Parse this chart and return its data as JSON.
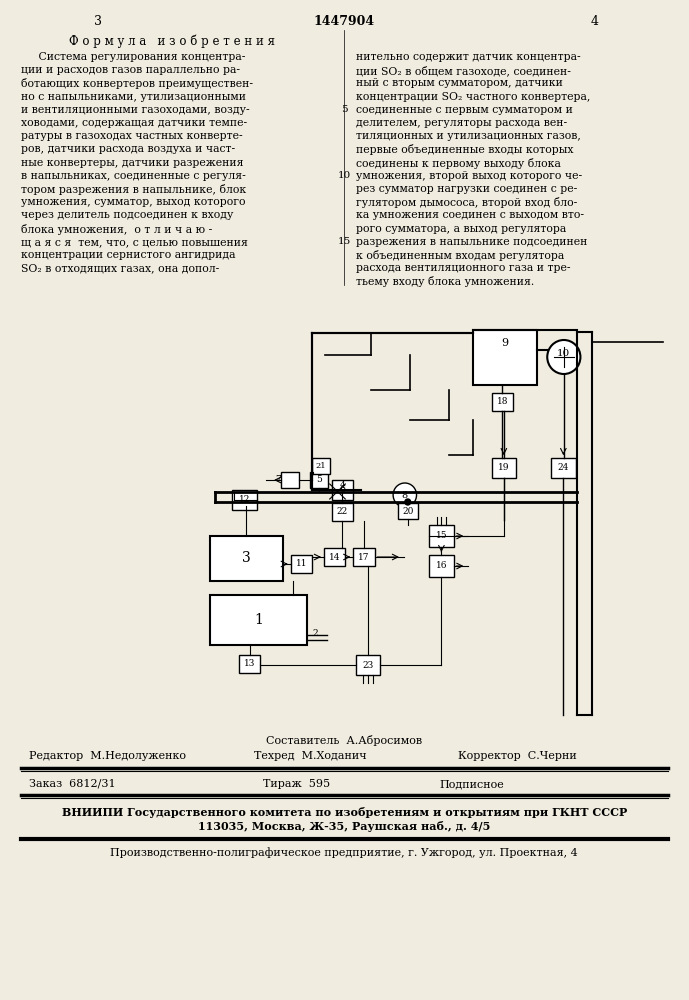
{
  "bg_color": "#f0ece0",
  "page_width": 7.07,
  "page_height": 10.0,
  "patent_number": "1447904",
  "page_left": "3",
  "page_right": "4",
  "header_formula_title": "Ф о р м у л а   и з о б р е т е н и я",
  "left_col_lines": [
    "     Система регулирования концентра-",
    "ции и расходов газов параллельно ра-",
    "ботающих конвертеров преимуществен-",
    "но с напыльниками, утилизационными",
    "и вентиляционными газоходами, возду-",
    "ховодами, содержащая датчики темпе-",
    "ратуры в газоходах частных конверте-",
    "ров, датчики расхода воздуха и част-",
    "ные конвертеры, датчики разрежения",
    "в напыльниках, соединенные с регуля-",
    "тором разрежения в напыльнике, блок",
    "умножения, сумматор, выход которого",
    "через делитель подсоединен к входу",
    "блока умножения,  о т л и ч а ю -",
    "щ а я с я  тем, что, с целью повышения",
    "концентрации сернистого ангидрида",
    "SO₂ в отходящих газах, она допол-"
  ],
  "right_col_lines": [
    "нительно содержит датчик концентра-",
    "ции SO₂ в общем газоходе, соединен-",
    "ный с вторым сумматором, датчики",
    "концентрации SO₂ частного конвертера,",
    "соединенные с первым сумматором и",
    "делителем, регуляторы расхода вен-",
    "тиляционных и утилизационных газов,",
    "первые объединенные входы которых",
    "соединены к первому выходу блока",
    "умножения, второй выход которого че-",
    "рез сумматор нагрузки соединен с ре-",
    "гулятором дымососа, второй вход бло-",
    "ка умножения соединен с выходом вто-",
    "рого сумматора, а выход регулятора",
    "разрежения в напыльнике подсоединен",
    "к объединенным входам регулятора",
    "расхода вентиляционного газа и тре-",
    "тьему входу блока умножения."
  ],
  "footer_compiler": "Составитель  А.Абросимов",
  "footer_editor": "Редактор  М.Недолуженко",
  "footer_techred": "Техред  М.Ходанич",
  "footer_corrector": "Корректор  С.Черни",
  "footer_order": "Заказ  6812/31",
  "footer_tirage": "Тираж  595",
  "footer_podpisnoe": "Подписное",
  "footer_vniipи": "ВНИИПИ Государственного комитета по изобретениям и открытиям при ГКНТ СССР",
  "footer_address": "113035, Москва, Ж-35, Раушская наб., д. 4/5",
  "footer_poligraf": "Производственно-полиграфическое предприятие, г. Ужгород, ул. Проектная, 4"
}
